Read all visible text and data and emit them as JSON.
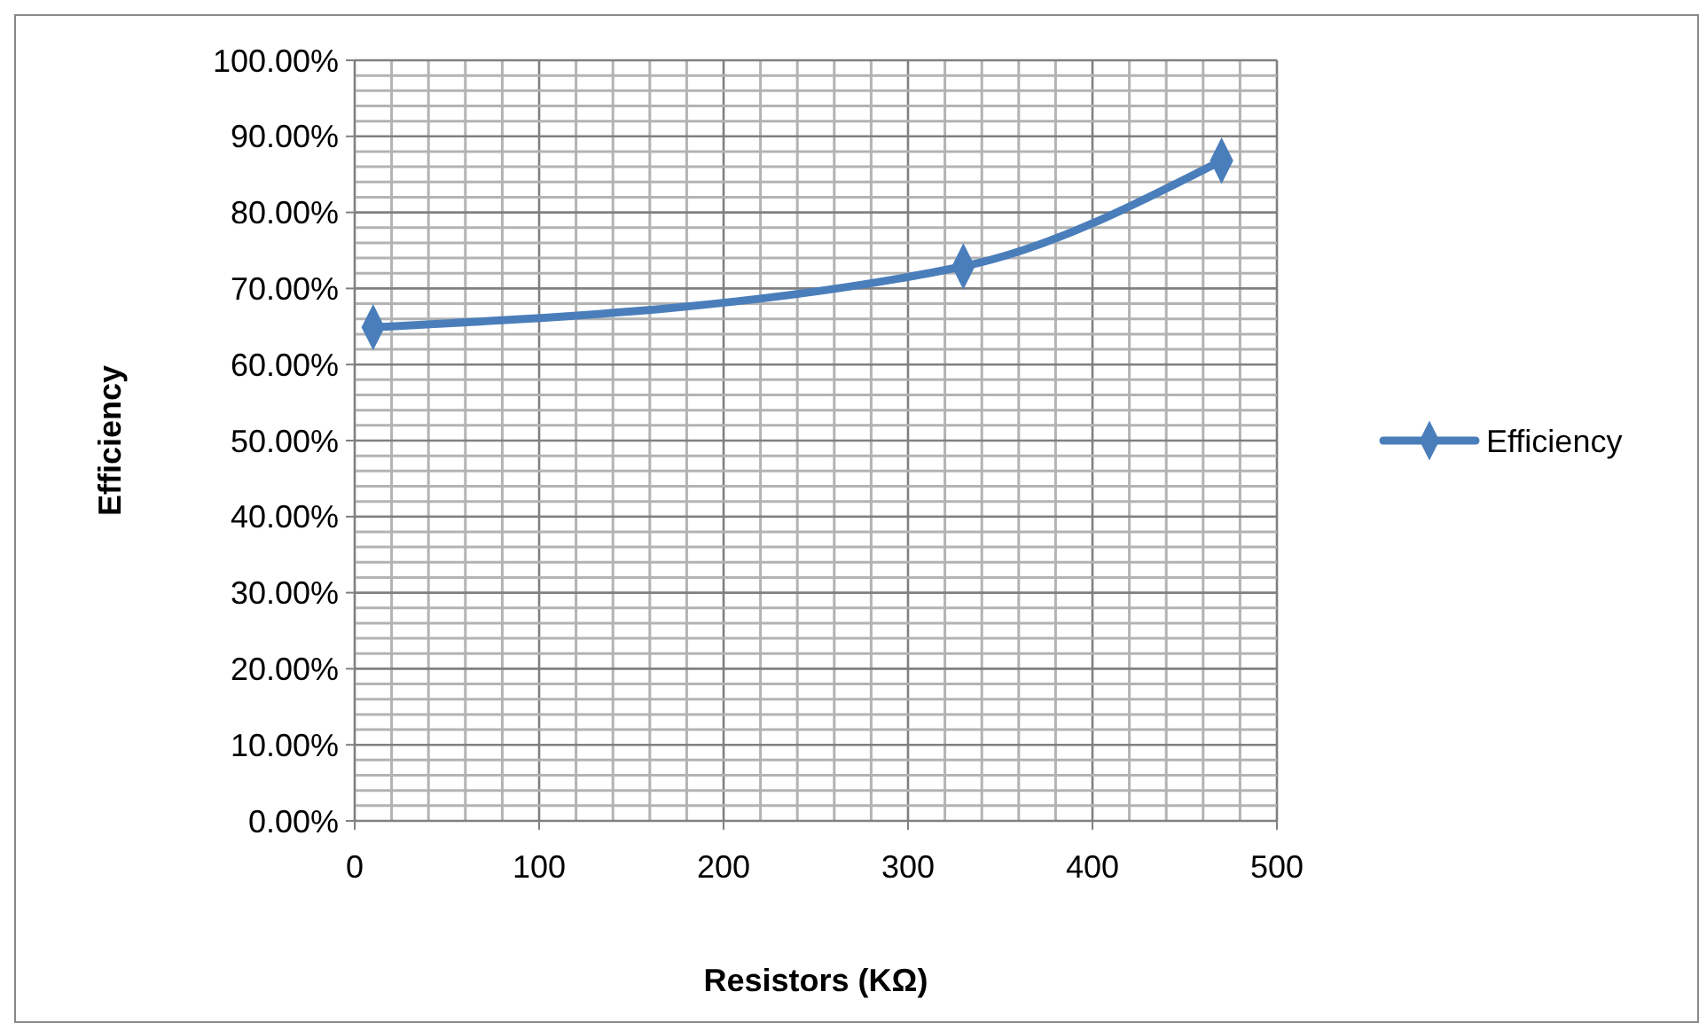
{
  "chart_data": {
    "type": "line",
    "xlabel": "Resistors (KΩ)",
    "ylabel": "Efficiency",
    "x": [
      10,
      330,
      470
    ],
    "series": [
      {
        "name": "Efficiency",
        "color": "#4a7ebb",
        "values": [
          64.9,
          72.9,
          86.8
        ]
      }
    ],
    "xlim": [
      0,
      500
    ],
    "xticks": [
      0,
      {
        "value": 20,
        "label": null
      },
      {
        "value": 40,
        "label": null
      },
      {
        "value": 60,
        "label": null
      },
      {
        "value": 80,
        "label": null
      },
      100,
      {
        "value": 120,
        "label": null
      },
      {
        "value": 140,
        "label": null
      },
      {
        "value": 160,
        "label": null
      },
      {
        "value": 180,
        "label": null
      },
      200,
      {
        "value": 220,
        "label": null
      },
      {
        "value": 240,
        "label": null
      },
      {
        "value": 260,
        "label": null
      },
      {
        "value": 280,
        "label": null
      },
      300,
      {
        "value": 320,
        "label": null
      },
      {
        "value": 340,
        "label": null
      },
      {
        "value": 360,
        "label": null
      },
      {
        "value": 380,
        "label": null
      },
      400,
      {
        "value": 420,
        "label": null
      },
      {
        "value": 440,
        "label": null
      },
      {
        "value": 460,
        "label": null
      },
      {
        "value": 480,
        "label": null
      },
      500
    ],
    "ylim": [
      0,
      100
    ],
    "yticks": [
      {
        "value": 0,
        "label": "0.00%"
      },
      {
        "value": 2,
        "label": null
      },
      {
        "value": 4,
        "label": null
      },
      {
        "value": 6,
        "label": null
      },
      {
        "value": 8,
        "label": null
      },
      {
        "value": 10,
        "label": "10.00%"
      },
      {
        "value": 12,
        "label": null
      },
      {
        "value": 14,
        "label": null
      },
      {
        "value": 16,
        "label": null
      },
      {
        "value": 18,
        "label": null
      },
      {
        "value": 20,
        "label": "20.00%"
      },
      {
        "value": 22,
        "label": null
      },
      {
        "value": 24,
        "label": null
      },
      {
        "value": 26,
        "label": null
      },
      {
        "value": 28,
        "label": null
      },
      {
        "value": 30,
        "label": "30.00%"
      },
      {
        "value": 32,
        "label": null
      },
      {
        "value": 34,
        "label": null
      },
      {
        "value": 36,
        "label": null
      },
      {
        "value": 38,
        "label": null
      },
      {
        "value": 40,
        "label": "40.00%"
      },
      {
        "value": 42,
        "label": null
      },
      {
        "value": 44,
        "label": null
      },
      {
        "value": 46,
        "label": null
      },
      {
        "value": 48,
        "label": null
      },
      {
        "value": 50,
        "label": "50.00%"
      },
      {
        "value": 52,
        "label": null
      },
      {
        "value": 54,
        "label": null
      },
      {
        "value": 56,
        "label": null
      },
      {
        "value": 58,
        "label": null
      },
      {
        "value": 60,
        "label": "60.00%"
      },
      {
        "value": 62,
        "label": null
      },
      {
        "value": 64,
        "label": null
      },
      {
        "value": 66,
        "label": null
      },
      {
        "value": 68,
        "label": null
      },
      {
        "value": 70,
        "label": "70.00%"
      },
      {
        "value": 72,
        "label": null
      },
      {
        "value": 74,
        "label": null
      },
      {
        "value": 76,
        "label": null
      },
      {
        "value": 78,
        "label": null
      },
      {
        "value": 80,
        "label": "80.00%"
      },
      {
        "value": 82,
        "label": null
      },
      {
        "value": 84,
        "label": null
      },
      {
        "value": 86,
        "label": null
      },
      {
        "value": 88,
        "label": null
      },
      {
        "value": 90,
        "label": "90.00%"
      },
      {
        "value": 92,
        "label": null
      },
      {
        "value": 94,
        "label": null
      },
      {
        "value": 96,
        "label": null
      },
      {
        "value": 98,
        "label": null
      },
      {
        "value": 100,
        "label": "100.00%"
      }
    ],
    "grid": true,
    "legend": "right",
    "marker": "diamond",
    "line_style": "solid"
  }
}
